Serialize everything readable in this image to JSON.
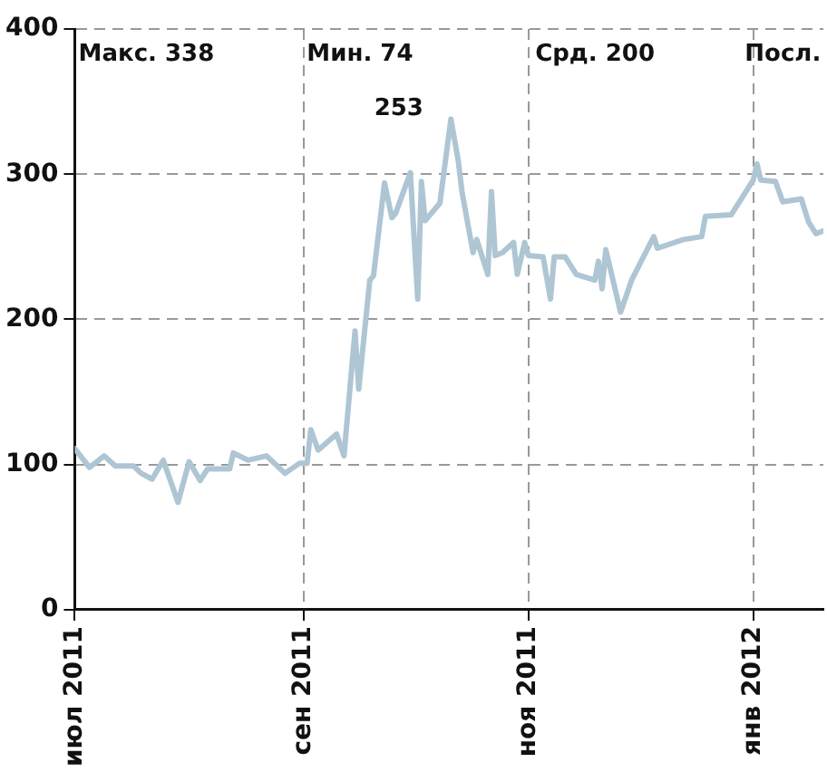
{
  "chart_data": {
    "type": "line",
    "annotations": [
      "Макс. 338",
      "Мин. 74",
      "Срд. 200",
      "Посл.",
      "253"
    ],
    "series": [
      {
        "color": "#aec6d4",
        "x": [
          "2011-07-01",
          "2011-07-05",
          "2011-07-09",
          "2011-07-12",
          "2011-07-17",
          "2011-07-19",
          "2011-07-22",
          "2011-07-25",
          "2011-07-29",
          "2011-08-01",
          "2011-08-04",
          "2011-08-06",
          "2011-08-12",
          "2011-08-13",
          "2011-08-17",
          "2011-08-22",
          "2011-08-27",
          "2011-08-31",
          "2011-09-02",
          "2011-09-03",
          "2011-09-05",
          "2011-09-10",
          "2011-09-12",
          "2011-09-15",
          "2011-09-16",
          "2011-09-19",
          "2011-09-20",
          "2011-09-23",
          "2011-09-25",
          "2011-09-26",
          "2011-09-30",
          "2011-10-02",
          "2011-10-03",
          "2011-10-04",
          "2011-10-08",
          "2011-10-11",
          "2011-10-13",
          "2011-10-14",
          "2011-10-17",
          "2011-10-18",
          "2011-10-21",
          "2011-10-22",
          "2011-10-23",
          "2011-10-25",
          "2011-10-28",
          "2011-10-29",
          "2011-10-31",
          "2011-11-01",
          "2011-11-05",
          "2011-11-07",
          "2011-11-08",
          "2011-11-11",
          "2011-11-14",
          "2011-11-19",
          "2011-11-20",
          "2011-11-21",
          "2011-11-22",
          "2011-11-26",
          "2011-11-29",
          "2011-12-05",
          "2011-12-06",
          "2011-12-13",
          "2011-12-18",
          "2011-12-19",
          "2011-12-26",
          "2012-01-01",
          "2012-01-02",
          "2012-01-03",
          "2012-01-07",
          "2012-01-09",
          "2012-01-14",
          "2012-01-16",
          "2012-01-18",
          "2012-01-20"
        ],
        "values": [
          111,
          98,
          106,
          99,
          99,
          94,
          90,
          103,
          74,
          102,
          89,
          97,
          97,
          108,
          103,
          106,
          94,
          101,
          101,
          124,
          110,
          121,
          106,
          192,
          152,
          227,
          230,
          294,
          270,
          273,
          301,
          214,
          295,
          268,
          280,
          338,
          309,
          288,
          246,
          255,
          231,
          288,
          244,
          246,
          253,
          231,
          253,
          244,
          243,
          214,
          243,
          243,
          231,
          227,
          240,
          221,
          248,
          205,
          227,
          257,
          249,
          255,
          257,
          271,
          272,
          296,
          307,
          296,
          295,
          281,
          283,
          267,
          259,
          261
        ]
      }
    ],
    "xlim": [
      "2011-07-01",
      "2012-01-20"
    ],
    "xticks": [
      {
        "value": "2011-07-01",
        "label": "июл 2011"
      },
      {
        "value": "2011-09-01",
        "label": "сен 2011"
      },
      {
        "value": "2011-11-01",
        "label": "ноя 2011"
      },
      {
        "value": "2012-01-01",
        "label": "янв 2012"
      }
    ],
    "ylim": [
      0,
      400
    ],
    "yticks": [
      0,
      100,
      200,
      300,
      400
    ],
    "grid": true,
    "legend": false,
    "marker": "none",
    "line_style": "solid"
  }
}
